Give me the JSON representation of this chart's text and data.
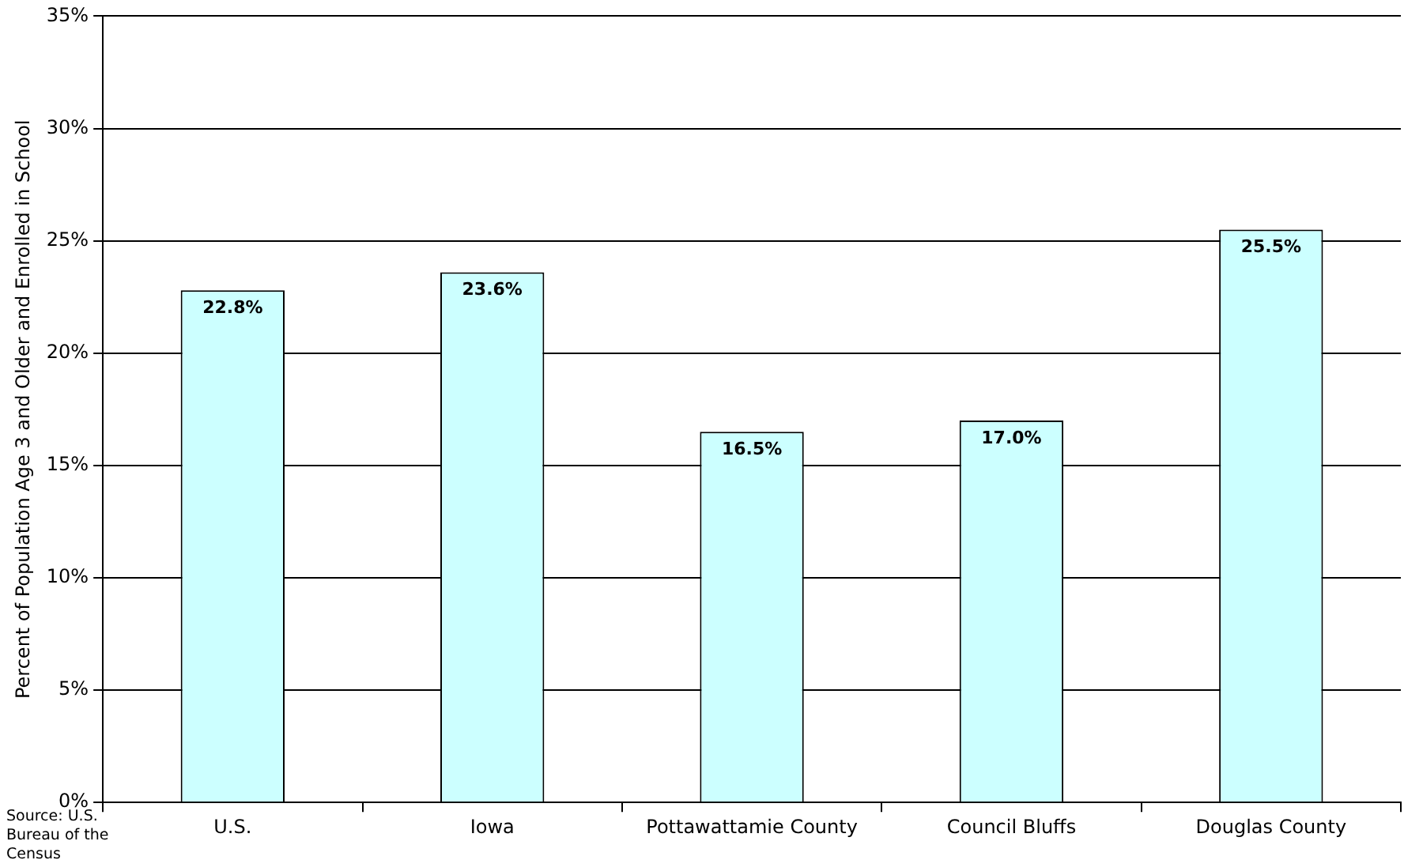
{
  "chart_data": {
    "type": "bar",
    "ylabel": "Percent of Population Age 3 and Older and Enrolled in School",
    "categories": [
      "U.S.",
      "Iowa",
      "Pottawattamie County",
      "Council Bluffs",
      "Douglas County"
    ],
    "values": [
      22.8,
      23.6,
      16.5,
      17.0,
      25.5
    ],
    "value_labels": [
      "22.8%",
      "23.6%",
      "16.5%",
      "17.0%",
      "25.5%"
    ],
    "color": "#ccffff",
    "ylim": [
      0,
      35
    ],
    "yticks": [
      {
        "value": 0,
        "label": "0%"
      },
      {
        "value": 5,
        "label": "5%"
      },
      {
        "value": 10,
        "label": "10%"
      },
      {
        "value": 15,
        "label": "15%"
      },
      {
        "value": 20,
        "label": "20%"
      },
      {
        "value": 25,
        "label": "25%"
      },
      {
        "value": 30,
        "label": "30%"
      },
      {
        "value": 35,
        "label": "35%"
      }
    ],
    "grid": "y",
    "legend": false,
    "annotations": [
      "Source: U.S. Bureau of the Census"
    ]
  }
}
